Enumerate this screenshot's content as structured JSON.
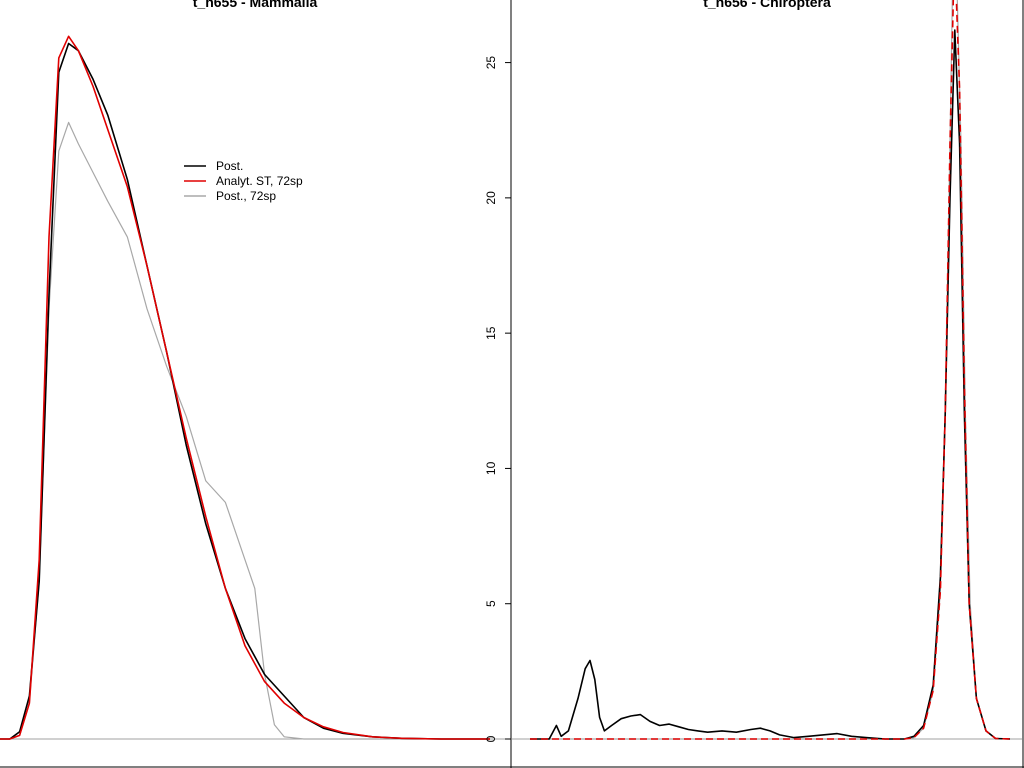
{
  "chart_data": [
    {
      "type": "line",
      "title": "t_n655 - Mammalia",
      "xlabel": "",
      "ylabel": "",
      "baseline_color": "#a0a0a0",
      "legend": {
        "placement": "upper-middle",
        "entries": [
          {
            "label": "Post.",
            "color": "#000000"
          },
          {
            "label": "Analyt. ST, 72sp",
            "color": "#e00000"
          },
          {
            "label": "Post., 72sp",
            "color": "#a8a8a8"
          }
        ]
      },
      "series": [
        {
          "name": "Post.",
          "color": "#000000",
          "points": [
            [
              0,
              0
            ],
            [
              0.02,
              0
            ],
            [
              0.04,
              0.01
            ],
            [
              0.06,
              0.06
            ],
            [
              0.08,
              0.22
            ],
            [
              0.1,
              0.62
            ],
            [
              0.12,
              0.93
            ],
            [
              0.14,
              0.97
            ],
            [
              0.16,
              0.96
            ],
            [
              0.19,
              0.92
            ],
            [
              0.22,
              0.87
            ],
            [
              0.26,
              0.78
            ],
            [
              0.3,
              0.66
            ],
            [
              0.34,
              0.54
            ],
            [
              0.38,
              0.41
            ],
            [
              0.42,
              0.3
            ],
            [
              0.46,
              0.21
            ],
            [
              0.5,
              0.14
            ],
            [
              0.54,
              0.09
            ],
            [
              0.58,
              0.06
            ],
            [
              0.62,
              0.03
            ],
            [
              0.66,
              0.015
            ],
            [
              0.7,
              0.008
            ],
            [
              0.76,
              0.003
            ],
            [
              0.82,
              0.001
            ],
            [
              0.9,
              0
            ],
            [
              1,
              0
            ]
          ]
        },
        {
          "name": "Analyt. ST, 72sp",
          "color": "#e00000",
          "points": [
            [
              0,
              0
            ],
            [
              0.02,
              0
            ],
            [
              0.04,
              0.005
            ],
            [
              0.06,
              0.05
            ],
            [
              0.08,
              0.25
            ],
            [
              0.1,
              0.7
            ],
            [
              0.12,
              0.95
            ],
            [
              0.14,
              0.98
            ],
            [
              0.16,
              0.96
            ],
            [
              0.19,
              0.91
            ],
            [
              0.22,
              0.85
            ],
            [
              0.26,
              0.77
            ],
            [
              0.3,
              0.66
            ],
            [
              0.34,
              0.54
            ],
            [
              0.38,
              0.42
            ],
            [
              0.42,
              0.31
            ],
            [
              0.46,
              0.21
            ],
            [
              0.5,
              0.13
            ],
            [
              0.54,
              0.08
            ],
            [
              0.58,
              0.05
            ],
            [
              0.62,
              0.03
            ],
            [
              0.66,
              0.017
            ],
            [
              0.7,
              0.009
            ],
            [
              0.76,
              0.003
            ],
            [
              0.82,
              0.001
            ],
            [
              0.9,
              0
            ],
            [
              1,
              0
            ]
          ]
        },
        {
          "name": "Post., 72sp",
          "color": "#a8a8a8",
          "points": [
            [
              0,
              0
            ],
            [
              0.02,
              0
            ],
            [
              0.04,
              0.005
            ],
            [
              0.06,
              0.05
            ],
            [
              0.08,
              0.22
            ],
            [
              0.1,
              0.6
            ],
            [
              0.12,
              0.82
            ],
            [
              0.14,
              0.86
            ],
            [
              0.16,
              0.83
            ],
            [
              0.19,
              0.79
            ],
            [
              0.22,
              0.75
            ],
            [
              0.26,
              0.7
            ],
            [
              0.3,
              0.6
            ],
            [
              0.34,
              0.52
            ],
            [
              0.38,
              0.45
            ],
            [
              0.42,
              0.36
            ],
            [
              0.46,
              0.33
            ],
            [
              0.5,
              0.25
            ],
            [
              0.52,
              0.21
            ],
            [
              0.54,
              0.09
            ],
            [
              0.56,
              0.02
            ],
            [
              0.58,
              0.003
            ],
            [
              0.62,
              0
            ],
            [
              1,
              0
            ]
          ]
        }
      ]
    },
    {
      "type": "line",
      "title": "t_n656 - Chiroptera",
      "xlabel": "",
      "ylabel": "",
      "ylim": [
        0,
        26.5
      ],
      "yticks": [
        0,
        5,
        10,
        15,
        20,
        25
      ],
      "baseline_color": "#a0a0a0",
      "series": [
        {
          "name": "Post.",
          "color": "#000000",
          "points": [
            [
              0,
              0
            ],
            [
              0.04,
              0
            ],
            [
              0.055,
              0.5
            ],
            [
              0.065,
              0.1
            ],
            [
              0.08,
              0.3
            ],
            [
              0.1,
              1.5
            ],
            [
              0.115,
              2.6
            ],
            [
              0.125,
              2.9
            ],
            [
              0.135,
              2.2
            ],
            [
              0.145,
              0.8
            ],
            [
              0.155,
              0.3
            ],
            [
              0.17,
              0.5
            ],
            [
              0.19,
              0.75
            ],
            [
              0.21,
              0.85
            ],
            [
              0.23,
              0.9
            ],
            [
              0.25,
              0.65
            ],
            [
              0.27,
              0.5
            ],
            [
              0.29,
              0.55
            ],
            [
              0.31,
              0.45
            ],
            [
              0.33,
              0.35
            ],
            [
              0.35,
              0.3
            ],
            [
              0.37,
              0.25
            ],
            [
              0.4,
              0.3
            ],
            [
              0.43,
              0.25
            ],
            [
              0.46,
              0.35
            ],
            [
              0.48,
              0.4
            ],
            [
              0.5,
              0.3
            ],
            [
              0.52,
              0.15
            ],
            [
              0.55,
              0.05
            ],
            [
              0.58,
              0.1
            ],
            [
              0.61,
              0.15
            ],
            [
              0.64,
              0.2
            ],
            [
              0.67,
              0.1
            ],
            [
              0.7,
              0.05
            ],
            [
              0.74,
              0
            ],
            [
              0.78,
              0
            ],
            [
              0.8,
              0.1
            ],
            [
              0.82,
              0.5
            ],
            [
              0.84,
              2.0
            ],
            [
              0.855,
              6.0
            ],
            [
              0.865,
              12.0
            ],
            [
              0.875,
              20.0
            ],
            [
              0.885,
              26.2
            ],
            [
              0.895,
              22.0
            ],
            [
              0.905,
              12.0
            ],
            [
              0.915,
              5.0
            ],
            [
              0.93,
              1.5
            ],
            [
              0.95,
              0.3
            ],
            [
              0.97,
              0.02
            ],
            [
              1,
              0
            ]
          ]
        },
        {
          "name": "Analyt. ST, 72sp",
          "color": "#e00000",
          "points": [
            [
              0,
              0
            ],
            [
              0.78,
              0
            ],
            [
              0.8,
              0.05
            ],
            [
              0.82,
              0.4
            ],
            [
              0.84,
              1.8
            ],
            [
              0.855,
              5.5
            ],
            [
              0.865,
              12.0
            ],
            [
              0.875,
              22.0
            ],
            [
              0.882,
              30.0
            ],
            [
              0.888,
              30.0
            ],
            [
              0.895,
              24.0
            ],
            [
              0.905,
              13.0
            ],
            [
              0.915,
              5.0
            ],
            [
              0.93,
              1.5
            ],
            [
              0.95,
              0.3
            ],
            [
              0.97,
              0.02
            ],
            [
              1,
              0
            ]
          ]
        },
        {
          "name": "Post., 72sp",
          "color": "#a8a8a8",
          "points": [
            [
              0,
              0
            ],
            [
              0.78,
              0
            ],
            [
              0.8,
              0.05
            ],
            [
              0.82,
              0.4
            ],
            [
              0.84,
              1.8
            ],
            [
              0.855,
              5.5
            ],
            [
              0.865,
              12.0
            ],
            [
              0.875,
              22.0
            ],
            [
              0.88,
              28.0
            ],
            [
              0.89,
              28.0
            ],
            [
              0.898,
              22.0
            ],
            [
              0.907,
              12.0
            ],
            [
              0.917,
              5.0
            ],
            [
              0.93,
              1.5
            ],
            [
              0.95,
              0.3
            ],
            [
              0.97,
              0.02
            ],
            [
              1,
              0
            ]
          ]
        }
      ]
    }
  ]
}
